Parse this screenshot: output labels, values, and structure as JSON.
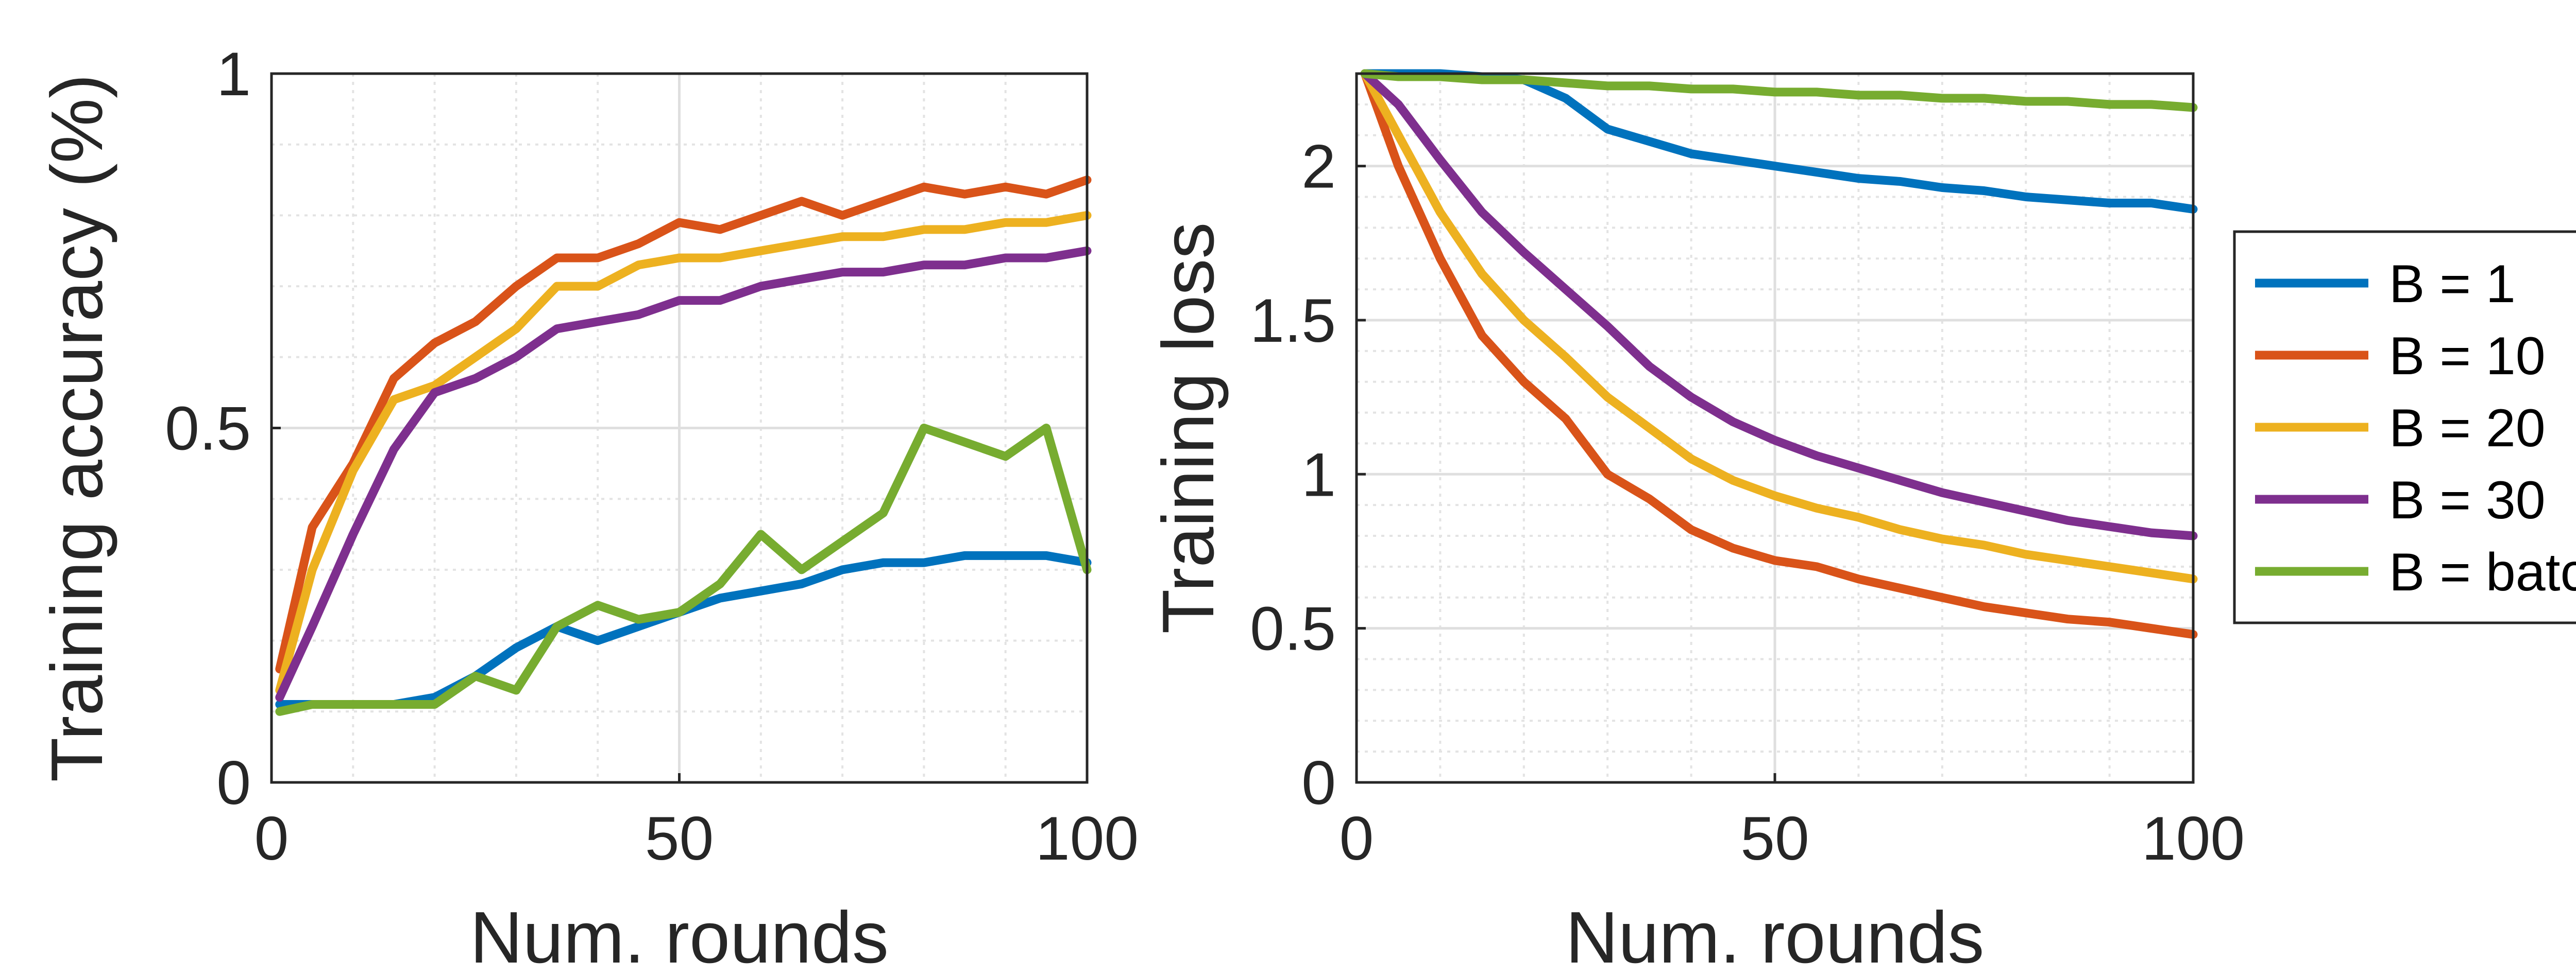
{
  "colors": {
    "axis": "#262626",
    "grid": "#dfdfdf",
    "minor_grid": "#e3e3e3",
    "series": [
      "#0072BD",
      "#D95319",
      "#EDB120",
      "#7E2F8E",
      "#77AC30"
    ]
  },
  "legend": {
    "placement": "right",
    "entries": [
      "B = 1",
      "B = 10",
      "B = 20",
      "B = 30",
      "B = batch"
    ]
  },
  "chart_data": [
    {
      "type": "line",
      "title": "",
      "xlabel": "Num. rounds",
      "ylabel": "Training accuracy (%)",
      "xlim": [
        0,
        100
      ],
      "ylim": [
        0,
        1
      ],
      "xticks": [
        0,
        50,
        100
      ],
      "yticks": [
        0,
        0.5,
        1
      ],
      "xtick_labels": [
        "0",
        "50",
        "100"
      ],
      "ytick_labels": [
        "0",
        "0.5",
        "1"
      ],
      "grid": true,
      "minor_grid": true,
      "x": [
        1,
        5,
        10,
        15,
        20,
        25,
        30,
        35,
        40,
        45,
        50,
        55,
        60,
        65,
        70,
        75,
        80,
        85,
        90,
        95,
        100
      ],
      "series": [
        {
          "name": "B = 1",
          "values": [
            0.11,
            0.11,
            0.11,
            0.11,
            0.12,
            0.15,
            0.19,
            0.22,
            0.2,
            0.22,
            0.24,
            0.26,
            0.27,
            0.28,
            0.3,
            0.31,
            0.31,
            0.32,
            0.32,
            0.32,
            0.31
          ]
        },
        {
          "name": "B = 10",
          "values": [
            0.16,
            0.36,
            0.45,
            0.57,
            0.62,
            0.65,
            0.7,
            0.74,
            0.74,
            0.76,
            0.79,
            0.78,
            0.8,
            0.82,
            0.8,
            0.82,
            0.84,
            0.83,
            0.84,
            0.83,
            0.85
          ]
        },
        {
          "name": "B = 20",
          "values": [
            0.13,
            0.3,
            0.44,
            0.54,
            0.56,
            0.6,
            0.64,
            0.7,
            0.7,
            0.73,
            0.74,
            0.74,
            0.75,
            0.76,
            0.77,
            0.77,
            0.78,
            0.78,
            0.79,
            0.79,
            0.8
          ]
        },
        {
          "name": "B = 30",
          "values": [
            0.12,
            0.22,
            0.35,
            0.47,
            0.55,
            0.57,
            0.6,
            0.64,
            0.65,
            0.66,
            0.68,
            0.68,
            0.7,
            0.71,
            0.72,
            0.72,
            0.73,
            0.73,
            0.74,
            0.74,
            0.75
          ]
        },
        {
          "name": "B = batch",
          "values": [
            0.1,
            0.11,
            0.11,
            0.11,
            0.11,
            0.15,
            0.13,
            0.22,
            0.25,
            0.23,
            0.24,
            0.28,
            0.35,
            0.3,
            0.34,
            0.38,
            0.5,
            0.48,
            0.46,
            0.5,
            0.3
          ]
        }
      ]
    },
    {
      "type": "line",
      "title": "",
      "xlabel": "Num. rounds",
      "ylabel": "Training loss",
      "xlim": [
        0,
        100
      ],
      "ylim": [
        0,
        2.3
      ],
      "xticks": [
        0,
        50,
        100
      ],
      "yticks": [
        0,
        0.5,
        1,
        1.5,
        2
      ],
      "xtick_labels": [
        "0",
        "50",
        "100"
      ],
      "ytick_labels": [
        "0",
        "0.5",
        "1",
        "1.5",
        "2"
      ],
      "grid": true,
      "minor_grid": true,
      "x": [
        1,
        5,
        10,
        15,
        20,
        25,
        30,
        35,
        40,
        45,
        50,
        55,
        60,
        65,
        70,
        75,
        80,
        85,
        90,
        95,
        100
      ],
      "series": [
        {
          "name": "B = 1",
          "values": [
            2.3,
            2.3,
            2.3,
            2.29,
            2.28,
            2.22,
            2.12,
            2.08,
            2.04,
            2.02,
            2.0,
            1.98,
            1.96,
            1.95,
            1.93,
            1.92,
            1.9,
            1.89,
            1.88,
            1.88,
            1.86
          ]
        },
        {
          "name": "B = 10",
          "values": [
            2.3,
            2.0,
            1.7,
            1.45,
            1.3,
            1.18,
            1.0,
            0.92,
            0.82,
            0.76,
            0.72,
            0.7,
            0.66,
            0.63,
            0.6,
            0.57,
            0.55,
            0.53,
            0.52,
            0.5,
            0.48
          ]
        },
        {
          "name": "B = 20",
          "values": [
            2.3,
            2.1,
            1.85,
            1.65,
            1.5,
            1.38,
            1.25,
            1.15,
            1.05,
            0.98,
            0.93,
            0.89,
            0.86,
            0.82,
            0.79,
            0.77,
            0.74,
            0.72,
            0.7,
            0.68,
            0.66
          ]
        },
        {
          "name": "B = 30",
          "values": [
            2.3,
            2.2,
            2.02,
            1.85,
            1.72,
            1.6,
            1.48,
            1.35,
            1.25,
            1.17,
            1.11,
            1.06,
            1.02,
            0.98,
            0.94,
            0.91,
            0.88,
            0.85,
            0.83,
            0.81,
            0.8
          ]
        },
        {
          "name": "B = batch",
          "values": [
            2.3,
            2.29,
            2.29,
            2.28,
            2.28,
            2.27,
            2.26,
            2.26,
            2.25,
            2.25,
            2.24,
            2.24,
            2.23,
            2.23,
            2.22,
            2.22,
            2.21,
            2.21,
            2.2,
            2.2,
            2.19
          ]
        }
      ]
    }
  ]
}
